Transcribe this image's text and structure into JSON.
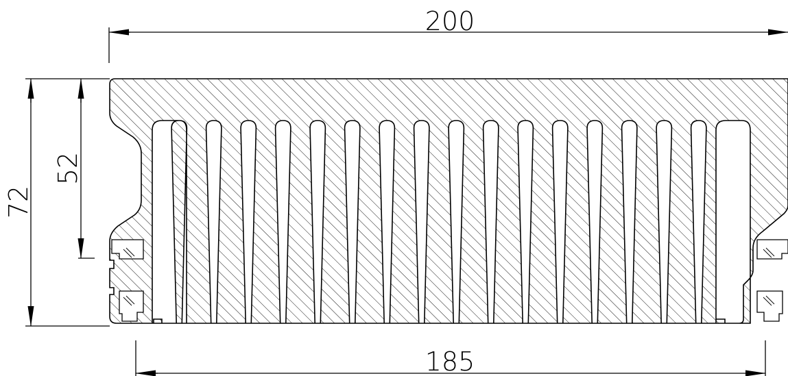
{
  "drawing": {
    "line_color": "#000000",
    "background": "#ffffff",
    "fin_count": 16,
    "dimensions": {
      "overall_width": "200",
      "base_width": "185",
      "overall_height": "72",
      "fin_height": "52"
    }
  }
}
